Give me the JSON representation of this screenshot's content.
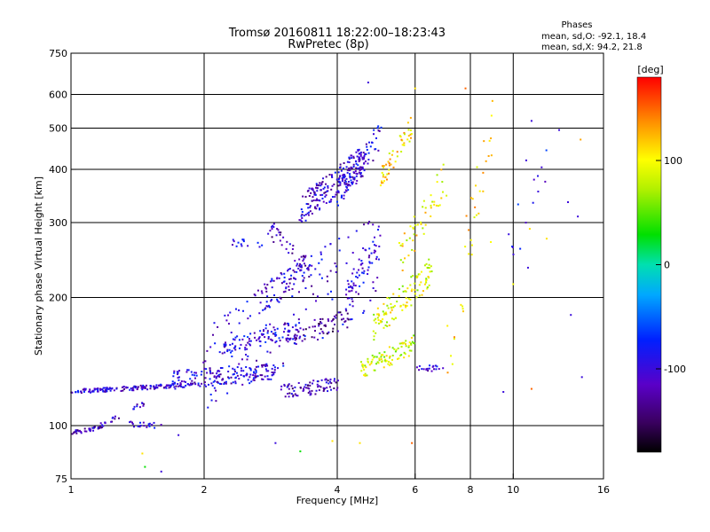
{
  "chart_data": {
    "type": "scatter",
    "title": "Tromsø 20160811 18:22:00–18:23:43",
    "subtitle": "RwPretec (8p)",
    "xlabel": "Frequency [MHz]",
    "ylabel": "Stationary phase Virtual Height [km]",
    "x_scale": "log",
    "y_scale": "log",
    "xlim": [
      1,
      16
    ],
    "ylim": [
      75,
      750
    ],
    "x_ticks": [
      1,
      2,
      4,
      6,
      8,
      10,
      16
    ],
    "x_tick_labels": [
      "1",
      "2",
      "4",
      "6",
      "8",
      "10",
      "16"
    ],
    "x_gridlines": [
      2,
      4,
      6,
      8,
      10
    ],
    "y_ticks": [
      75,
      100,
      200,
      300,
      400,
      500,
      600,
      750
    ],
    "y_tick_labels": [
      "75",
      "100",
      "200",
      "300",
      "400",
      "500",
      "600",
      "750"
    ],
    "y_gridlines": [
      100,
      200,
      300,
      400,
      500,
      600
    ],
    "grid": true,
    "stats": {
      "heading": "Phases",
      "line_o": "mean, sd,O: -92.1, 18.4",
      "line_x": "mean, sd,X:  94.2, 21.8"
    },
    "colorbar": {
      "label": "[deg]",
      "range": [
        -180,
        180
      ],
      "ticks": [
        100,
        0,
        -100
      ],
      "tick_labels": [
        "100",
        "0",
        "-100"
      ],
      "colormap": "rainbow"
    },
    "traces": [
      {
        "x0": 1.0,
        "x1": 1.9,
        "y0": 120,
        "y1": 125,
        "phase": -105,
        "n": 150,
        "spread": 0.012
      },
      {
        "x0": 1.0,
        "x1": 1.17,
        "y0": 96,
        "y1": 99,
        "phase": -110,
        "n": 40,
        "spread": 0.01
      },
      {
        "x0": 1.17,
        "x1": 1.3,
        "y0": 100,
        "y1": 106,
        "phase": -110,
        "n": 15,
        "spread": 0.015
      },
      {
        "x0": 1.35,
        "x1": 1.6,
        "y0": 101,
        "y1": 100,
        "phase": -100,
        "n": 20,
        "spread": 0.015
      },
      {
        "x0": 1.38,
        "x1": 1.45,
        "y0": 110,
        "y1": 112,
        "phase": -110,
        "n": 10,
        "spread": 0.015
      },
      {
        "x0": 1.7,
        "x1": 3.0,
        "y0": 128,
        "y1": 135,
        "phase": -100,
        "n": 160,
        "spread": 0.05
      },
      {
        "x0": 2.2,
        "x1": 3.3,
        "y0": 150,
        "y1": 170,
        "phase": -95,
        "n": 100,
        "spread": 0.05
      },
      {
        "x0": 2.7,
        "x1": 3.5,
        "y0": 200,
        "y1": 230,
        "phase": -105,
        "n": 70,
        "spread": 0.08
      },
      {
        "x0": 2.8,
        "x1": 3.4,
        "y0": 290,
        "y1": 240,
        "phase": -120,
        "n": 40,
        "spread": 0.05
      },
      {
        "x0": 2.3,
        "x1": 2.7,
        "y0": 270,
        "y1": 265,
        "phase": -105,
        "n": 15,
        "spread": 0.03
      },
      {
        "x0": 3.0,
        "x1": 4.0,
        "y0": 120,
        "y1": 125,
        "phase": -120,
        "n": 80,
        "spread": 0.04
      },
      {
        "x0": 3.2,
        "x1": 4.3,
        "y0": 160,
        "y1": 180,
        "phase": -130,
        "n": 60,
        "spread": 0.05
      },
      {
        "x0": 3.3,
        "x1": 4.6,
        "y0": 320,
        "y1": 420,
        "phase": -105,
        "n": 200,
        "spread": 0.08
      },
      {
        "x0": 4.0,
        "x1": 5.0,
        "y0": 350,
        "y1": 480,
        "phase": -100,
        "n": 80,
        "spread": 0.08
      },
      {
        "x0": 4.2,
        "x1": 5.0,
        "y0": 200,
        "y1": 280,
        "phase": -95,
        "n": 60,
        "spread": 0.08
      },
      {
        "x0": 4.5,
        "x1": 6.0,
        "y0": 135,
        "y1": 155,
        "phase": 85,
        "n": 90,
        "spread": 0.05
      },
      {
        "x0": 4.8,
        "x1": 6.5,
        "y0": 170,
        "y1": 230,
        "phase": 90,
        "n": 110,
        "spread": 0.08
      },
      {
        "x0": 5.0,
        "x1": 5.9,
        "y0": 380,
        "y1": 500,
        "phase": 110,
        "n": 50,
        "spread": 0.06
      },
      {
        "x0": 5.5,
        "x1": 7.0,
        "y0": 240,
        "y1": 380,
        "phase": 100,
        "n": 50,
        "spread": 0.1
      },
      {
        "x0": 6.0,
        "x1": 7.0,
        "y0": 135,
        "y1": 138,
        "phase": -100,
        "n": 20,
        "spread": 0.02
      },
      {
        "x0": 7.0,
        "x1": 9.0,
        "y0": 140,
        "y1": 500,
        "phase": 110,
        "n": 35,
        "spread": 0.2
      },
      {
        "x0": 9.5,
        "x1": 12.0,
        "y0": 250,
        "y1": 400,
        "phase": -90,
        "n": 14,
        "spread": 0.15
      },
      {
        "x0": 2.0,
        "x1": 5.0,
        "y0": 135,
        "y1": 250,
        "phase": -100,
        "n": 160,
        "spread": 0.25
      }
    ],
    "scatter_points": [
      {
        "x": 4.7,
        "y": 640,
        "phase": -100
      },
      {
        "x": 6.0,
        "y": 620,
        "phase": 110
      },
      {
        "x": 7.8,
        "y": 620,
        "phase": 150
      },
      {
        "x": 11.0,
        "y": 520,
        "phase": -100
      },
      {
        "x": 12.7,
        "y": 495,
        "phase": -100
      },
      {
        "x": 14.2,
        "y": 470,
        "phase": 130
      },
      {
        "x": 13.3,
        "y": 335,
        "phase": -100
      },
      {
        "x": 14.0,
        "y": 310,
        "phase": -100
      },
      {
        "x": 13.5,
        "y": 182,
        "phase": -100
      },
      {
        "x": 14.3,
        "y": 130,
        "phase": -100
      },
      {
        "x": 11.0,
        "y": 122,
        "phase": 150
      },
      {
        "x": 1.45,
        "y": 86,
        "phase": 110
      },
      {
        "x": 1.47,
        "y": 80,
        "phase": 30
      },
      {
        "x": 1.6,
        "y": 78,
        "phase": -100
      },
      {
        "x": 3.3,
        "y": 87,
        "phase": 30
      },
      {
        "x": 4.5,
        "y": 91,
        "phase": 110
      },
      {
        "x": 5.9,
        "y": 91,
        "phase": 150
      },
      {
        "x": 3.9,
        "y": 92,
        "phase": 110
      },
      {
        "x": 2.9,
        "y": 91,
        "phase": -100
      },
      {
        "x": 1.75,
        "y": 95,
        "phase": -100
      },
      {
        "x": 8.8,
        "y": 430,
        "phase": 130
      },
      {
        "x": 10.7,
        "y": 420,
        "phase": -100
      },
      {
        "x": 10.0,
        "y": 215,
        "phase": 100
      },
      {
        "x": 10.8,
        "y": 235,
        "phase": -100
      },
      {
        "x": 10.9,
        "y": 290,
        "phase": 110
      },
      {
        "x": 8.9,
        "y": 270,
        "phase": 100
      },
      {
        "x": 9.5,
        "y": 120,
        "phase": -100
      },
      {
        "x": 11.9,
        "y": 275,
        "phase": 110
      }
    ]
  }
}
